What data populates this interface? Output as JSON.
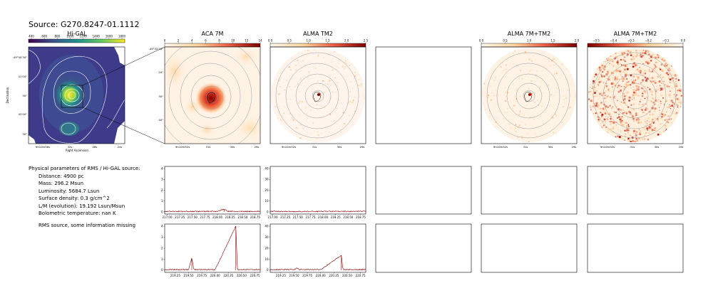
{
  "source_title": "Source: G270.8247-01.1112",
  "panels": {
    "higal": {
      "title": "Hi-GAL",
      "ticks": [
        "400",
        "600",
        "800",
        "1000",
        "1200",
        "1400",
        "1600",
        "1800"
      ],
      "xlabel": "Right Ascension",
      "ylabel": "Declination",
      "yticks": [
        "-49°40'30\"",
        "41'00\"",
        "30\"",
        "42'00\"",
        "30\""
      ],
      "xticks": [
        "9h10m36s",
        "32s",
        "28s",
        "24s"
      ]
    },
    "aca": {
      "title": "ACA 7M",
      "ticks": [
        "0",
        "2",
        "4",
        "6",
        "8",
        "10",
        "12",
        "14"
      ],
      "yticks": [
        "-49°42'10\"",
        "20\"",
        "30\"",
        "40\""
      ],
      "xticks": [
        "9h10m32s",
        "31s",
        "30s",
        "29s"
      ]
    },
    "alma_tm2": {
      "title": "ALMA TM2",
      "ticks": [
        "0.0",
        "0.5",
        "1.0",
        "1.5",
        "2.0",
        "2.5"
      ],
      "xticks": [
        "9h10m32s",
        "31s",
        "30s",
        "29s"
      ]
    },
    "alma_7m_tm2_a": {
      "title": "ALMA 7M+TM2",
      "ticks": [
        "0.0",
        "0.5",
        "1.0",
        "1.5",
        "2.0"
      ],
      "xticks": [
        "9h10m32s",
        "31s",
        "30s",
        "29s"
      ]
    },
    "alma_7m_tm2_b": {
      "title": "ALMA 7M+TM2",
      "ticks": [
        "−0.5",
        "−0.4",
        "−0.3",
        "−0.2",
        "−0.1",
        "0.0"
      ],
      "xticks": [
        "9h10m32s",
        "31s",
        "30s",
        "29s"
      ]
    }
  },
  "info": {
    "header": "Physical parameters of RMS / Hi-GAL source:",
    "distance": "Distance: 4900 pc",
    "mass": "Mass: 296.2 Msun",
    "luminosity": "Luminosity: 5684.7 Lsun",
    "surface_density": "Surface density: 0.3 g/cm^2",
    "lm": "L/M (evolution): 19.192 Lsun/Msun",
    "tbol": "Bolometric temperature: nan K",
    "rms_note": "RMS source, some information missing"
  },
  "chart_data": [
    {
      "type": "line",
      "panel": "ACA 7M spectrum (upper)",
      "x_ticks": [
        "217.00",
        "217.25",
        "217.50",
        "217.75",
        "218.00",
        "218.25",
        "218.50",
        "218.75"
      ],
      "y_ticks": [
        "0",
        "1",
        "2",
        "3",
        "4"
      ],
      "ylim": [
        -0.2,
        4.2
      ],
      "series": [
        {
          "values": [
            [
              217.0,
              0.05
            ],
            [
              217.5,
              0.04
            ],
            [
              218.0,
              0.06
            ],
            [
              218.13,
              0.25
            ],
            [
              218.2,
              0.05
            ],
            [
              218.5,
              0.04
            ],
            [
              218.8,
              0.05
            ]
          ]
        }
      ]
    },
    {
      "type": "line",
      "panel": "ALMA TM2 spectrum (upper)",
      "x_ticks": [
        "217.00",
        "217.25",
        "217.50",
        "217.75",
        "218.00",
        "218.25",
        "218.50",
        "218.75"
      ],
      "y_ticks": [
        "0",
        "10",
        "20",
        "30",
        "40"
      ],
      "ylim": [
        -2,
        42
      ],
      "series": [
        {
          "values": [
            [
              217.0,
              0.5
            ],
            [
              217.5,
              0.3
            ],
            [
              218.0,
              0.5
            ],
            [
              218.5,
              0.4
            ],
            [
              218.8,
              0.5
            ]
          ]
        }
      ]
    },
    {
      "type": "line",
      "panel": "ACA 7M spectrum (lower)",
      "x_ticks": [
        "219.25",
        "219.50",
        "219.75",
        "220.00",
        "220.25",
        "220.50",
        "220.75"
      ],
      "y_ticks": [
        "0",
        "1",
        "2",
        "3",
        "4"
      ],
      "ylim": [
        -0.2,
        4.2
      ],
      "series": [
        {
          "values": [
            [
              219.05,
              0.05
            ],
            [
              219.5,
              0.05
            ],
            [
              219.56,
              1.1
            ],
            [
              219.6,
              0.05
            ],
            [
              220.0,
              0.05
            ],
            [
              220.39,
              4.0
            ],
            [
              220.42,
              0.05
            ],
            [
              220.8,
              0.05
            ]
          ]
        }
      ]
    },
    {
      "type": "line",
      "panel": "ALMA TM2 spectrum (lower)",
      "x_ticks": [
        "219.25",
        "219.50",
        "219.75",
        "220.00",
        "220.25",
        "220.50",
        "220.75"
      ],
      "y_ticks": [
        "0",
        "10",
        "20",
        "30",
        "40"
      ],
      "ylim": [
        -2,
        42
      ],
      "series": [
        {
          "values": [
            [
              219.05,
              0.5
            ],
            [
              219.5,
              0.5
            ],
            [
              219.56,
              2.0
            ],
            [
              219.6,
              0.5
            ],
            [
              220.0,
              0.5
            ],
            [
              220.39,
              13.5
            ],
            [
              220.42,
              0.5
            ],
            [
              220.8,
              0.5
            ]
          ]
        }
      ]
    }
  ]
}
